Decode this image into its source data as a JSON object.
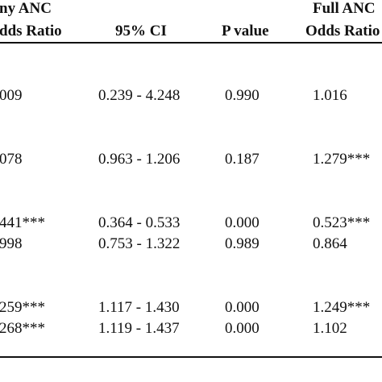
{
  "table": {
    "headers": {
      "group_left_partial": "ny ANC",
      "col1_partial": "dds Ratio",
      "col2": "95% CI",
      "col3": "P value",
      "group_right_partial": "Full ANC",
      "col4_partial": "Odds Ratio"
    },
    "rows": [
      {
        "or": "009",
        "ci": "0.239 - 4.248",
        "p": "0.990",
        "full_or": "1.016"
      },
      {
        "or": "078",
        "ci": "0.963 - 1.206",
        "p": "0.187",
        "full_or": "1.279***"
      },
      {
        "or": "441***",
        "ci": "0.364 - 0.533",
        "p": "0.000",
        "full_or": "0.523***"
      },
      {
        "or": "998",
        "ci": "0.753 - 1.322",
        "p": "0.989",
        "full_or": "0.864"
      },
      {
        "or": "259***",
        "ci": "1.117 - 1.430",
        "p": "0.000",
        "full_or": "1.249***"
      },
      {
        "or": "268***",
        "ci": "1.119 - 1.437",
        "p": "0.000",
        "full_or": "1.102"
      }
    ]
  }
}
